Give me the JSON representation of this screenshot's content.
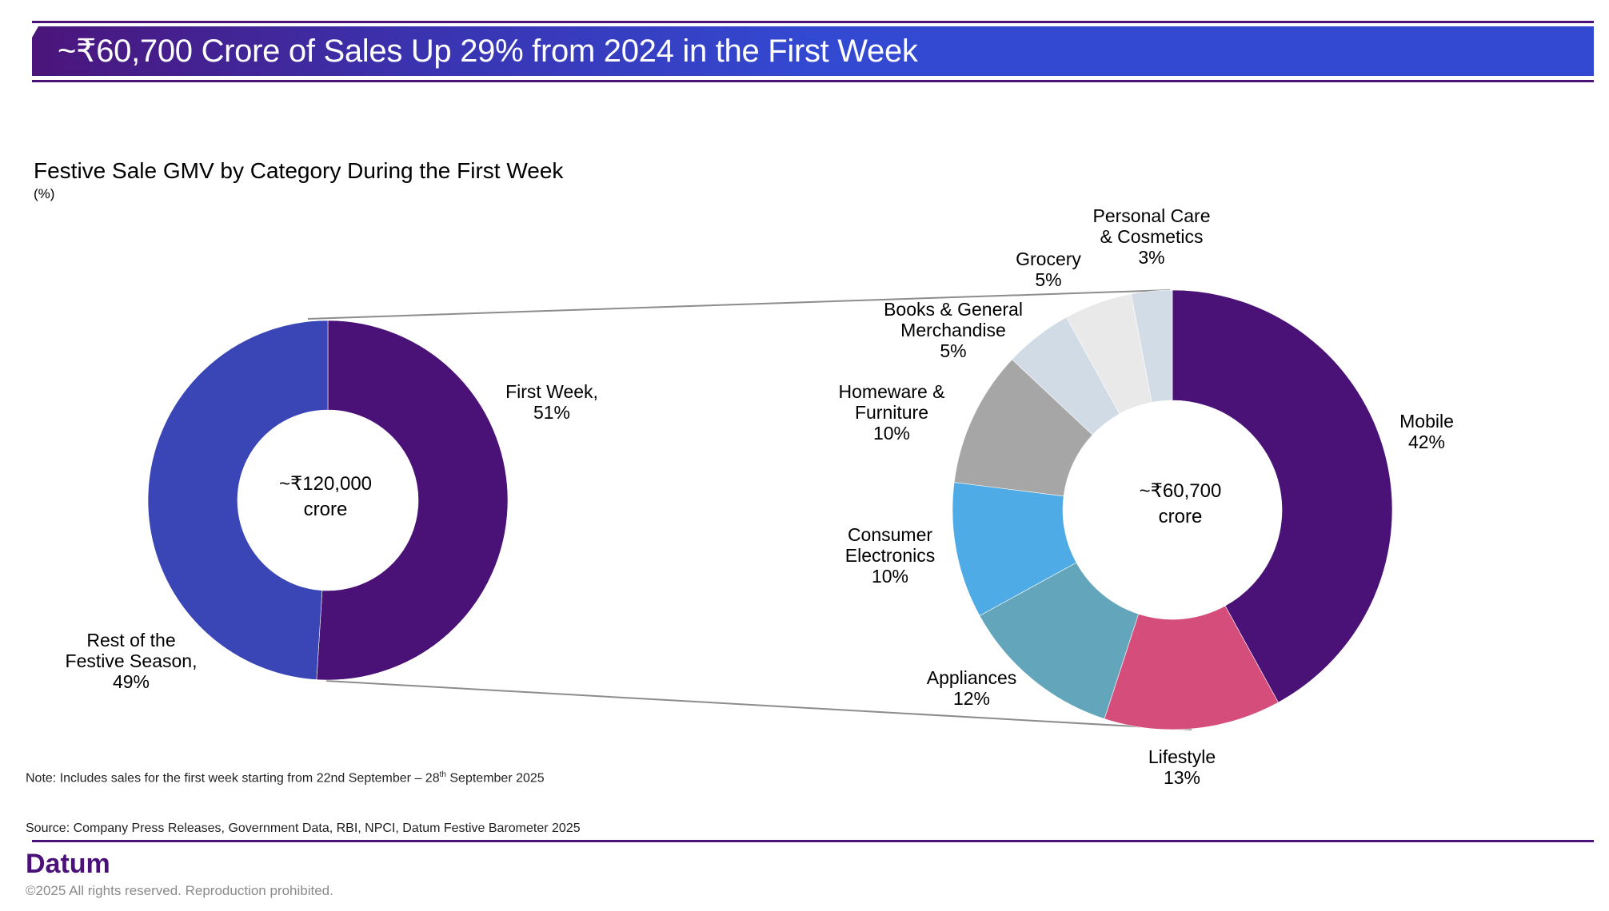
{
  "header": {
    "title": "~₹60,700 Crore of Sales Up 29% from 2024 in the First Week",
    "colors": {
      "line": "#4a1279",
      "gradient_start": "#4b157a",
      "gradient_end": "#3349d2"
    }
  },
  "chart_data": [
    {
      "type": "pie",
      "variant": "donut",
      "title": "Festive Sale GMV by Category During the First Week",
      "subtitle": "(%)",
      "center_label": [
        "~₹120,000",
        "crore"
      ],
      "slices": [
        {
          "label": "First Week,",
          "value": 51,
          "value_label": "51%",
          "color": "#4a1176"
        },
        {
          "label": "Rest of the Festive Season,",
          "value": 49,
          "value_label": "49%",
          "color": "#3a46b5"
        }
      ]
    },
    {
      "type": "pie",
      "variant": "donut",
      "title": "First Week breakdown by category",
      "center_label": [
        "~₹60,700",
        "crore"
      ],
      "slices": [
        {
          "label": "Mobile",
          "value": 42,
          "value_label": "42%",
          "color": "#4a1176"
        },
        {
          "label": "Lifestyle",
          "value": 13,
          "value_label": "13%",
          "color": "#d44d7b"
        },
        {
          "label": "Appliances",
          "value": 12,
          "value_label": "12%",
          "color": "#63a6bb"
        },
        {
          "label": "Consumer Electronics",
          "value": 10,
          "value_label": "10%",
          "color": "#4fabe6"
        },
        {
          "label": "Homeware & Furniture",
          "value": 10,
          "value_label": "10%",
          "color": "#a6a6a6"
        },
        {
          "label": "Books & General Merchandise",
          "value": 5,
          "value_label": "5%",
          "color": "#d0dbe5"
        },
        {
          "label": "Grocery",
          "value": 5,
          "value_label": "5%",
          "color": "#e9e9e9"
        },
        {
          "label": "Personal Care & Cosmetics",
          "value": 3,
          "value_label": "3%",
          "color": "#d2dce6"
        }
      ]
    }
  ],
  "labels": {
    "first_week": [
      "First Week,",
      "51%"
    ],
    "rest": [
      "Rest of the",
      "Festive Season,",
      "49%"
    ],
    "mobile": [
      "Mobile",
      "42%"
    ],
    "lifestyle": [
      "Lifestyle",
      "13%"
    ],
    "appliances": [
      "Appliances",
      "12%"
    ],
    "consumer_electronics": [
      "Consumer",
      "Electronics",
      "10%"
    ],
    "homeware": [
      "Homeware &",
      "Furniture",
      "10%"
    ],
    "books": [
      "Books & General",
      "Merchandise",
      "5%"
    ],
    "grocery": [
      "Grocery",
      "5%"
    ],
    "personal_care": [
      "Personal Care",
      "& Cosmetics",
      "3%"
    ],
    "left_center": [
      "~₹120,000",
      "crore"
    ],
    "right_center": [
      "~₹60,700",
      "crore"
    ]
  },
  "footer": {
    "note_prefix": "Note: Includes sales for the first week starting from 22nd September – 28",
    "note_sup": "th",
    "note_suffix": " September 2025",
    "source": "Source: Company Press Releases, Government Data, RBI, NPCI, Datum Festive Barometer 2025",
    "brand": "Datum",
    "copyright": "©2025 All rights reserved. Reproduction prohibited."
  }
}
